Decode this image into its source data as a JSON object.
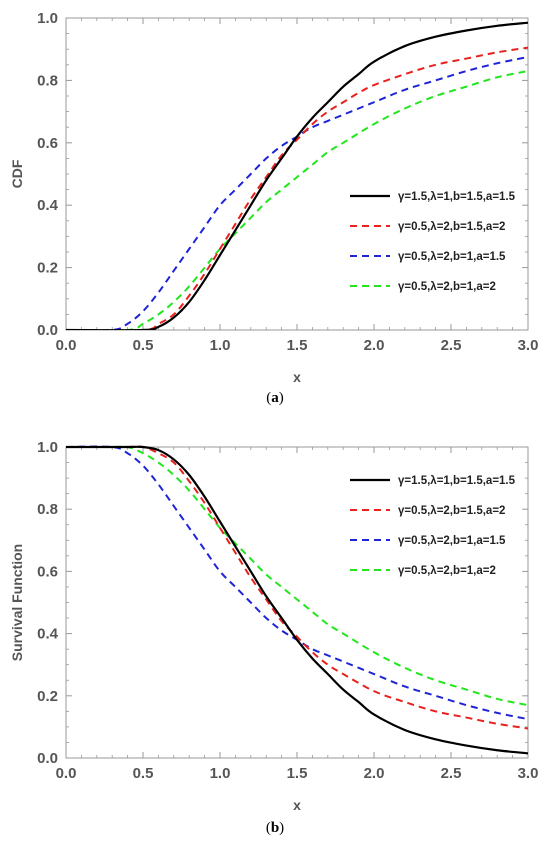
{
  "colors": {
    "series1": "#000000",
    "series2": "#e8211d",
    "series3": "#1f24d6",
    "series4": "#22e61d",
    "axis": "#999999",
    "tick_text": "#555555"
  },
  "chart_data": [
    {
      "type": "line",
      "panel_label": "a",
      "xlabel": "x",
      "ylabel": "CDF",
      "xlim": [
        0.0,
        3.0
      ],
      "ylim": [
        0.0,
        1.0
      ],
      "xticks": [
        "0.0",
        "0.5",
        "1.0",
        "1.5",
        "2.0",
        "2.5",
        "3.0"
      ],
      "yticks": [
        "0.0",
        "0.2",
        "0.4",
        "0.6",
        "0.8",
        "1.0"
      ],
      "grid": false,
      "legend_position": "center-right",
      "series": [
        {
          "name": "γ=1.5,λ=1,b=1.5,a=1.5",
          "style": "solid",
          "x": [
            0.5,
            0.6,
            0.7,
            0.8,
            0.9,
            1.0,
            1.1,
            1.2,
            1.3,
            1.4,
            1.5,
            1.6,
            1.7,
            1.8,
            1.9,
            2.0,
            2.2,
            2.4,
            2.6,
            2.8,
            3.0
          ],
          "y": [
            0.0,
            0.01,
            0.04,
            0.09,
            0.16,
            0.24,
            0.32,
            0.4,
            0.48,
            0.55,
            0.62,
            0.68,
            0.73,
            0.78,
            0.82,
            0.86,
            0.91,
            0.94,
            0.96,
            0.975,
            0.985
          ]
        },
        {
          "name": "γ=0.5,λ=2,b=1.5,a=2",
          "style": "dashed",
          "x": [
            0.5,
            0.6,
            0.7,
            0.8,
            0.9,
            1.0,
            1.1,
            1.2,
            1.3,
            1.4,
            1.5,
            1.6,
            1.7,
            1.8,
            1.9,
            2.0,
            2.2,
            2.4,
            2.6,
            2.8,
            3.0
          ],
          "y": [
            0.0,
            0.02,
            0.05,
            0.11,
            0.18,
            0.26,
            0.34,
            0.42,
            0.49,
            0.56,
            0.61,
            0.66,
            0.7,
            0.73,
            0.76,
            0.785,
            0.82,
            0.85,
            0.87,
            0.89,
            0.905
          ]
        },
        {
          "name": "γ=0.5,λ=2,b=1,a=1.5",
          "style": "dashed",
          "x": [
            0.3,
            0.4,
            0.5,
            0.6,
            0.7,
            0.8,
            0.9,
            1.0,
            1.1,
            1.2,
            1.3,
            1.4,
            1.5,
            1.6,
            1.7,
            1.8,
            2.0,
            2.2,
            2.4,
            2.6,
            2.8,
            3.0
          ],
          "y": [
            0.0,
            0.02,
            0.06,
            0.12,
            0.19,
            0.26,
            0.33,
            0.4,
            0.45,
            0.5,
            0.55,
            0.59,
            0.62,
            0.65,
            0.67,
            0.69,
            0.73,
            0.77,
            0.8,
            0.83,
            0.855,
            0.875
          ]
        },
        {
          "name": "γ=0.5,λ=2,b=1,a=2",
          "style": "dashed",
          "x": [
            0.4,
            0.5,
            0.6,
            0.7,
            0.8,
            0.9,
            1.0,
            1.1,
            1.2,
            1.3,
            1.4,
            1.5,
            1.6,
            1.7,
            1.8,
            2.0,
            2.2,
            2.4,
            2.6,
            2.8,
            3.0
          ],
          "y": [
            0.0,
            0.02,
            0.05,
            0.09,
            0.14,
            0.2,
            0.26,
            0.31,
            0.36,
            0.41,
            0.45,
            0.49,
            0.53,
            0.57,
            0.6,
            0.66,
            0.71,
            0.75,
            0.78,
            0.81,
            0.83
          ]
        }
      ]
    },
    {
      "type": "line",
      "panel_label": "b",
      "xlabel": "x",
      "ylabel": "Survival Function",
      "xlim": [
        0.0,
        3.0
      ],
      "ylim": [
        0.0,
        1.0
      ],
      "xticks": [
        "0.0",
        "0.5",
        "1.0",
        "1.5",
        "2.0",
        "2.5",
        "3.0"
      ],
      "yticks": [
        "0.0",
        "0.2",
        "0.4",
        "0.6",
        "0.8",
        "1.0"
      ],
      "grid": false,
      "legend_position": "top-right",
      "series": [
        {
          "name": "γ=1.5,λ=1,b=1.5,a=1.5",
          "style": "solid",
          "x": [
            0.3,
            0.4,
            0.5,
            0.6,
            0.7,
            0.8,
            0.9,
            1.0,
            1.1,
            1.2,
            1.3,
            1.4,
            1.5,
            1.6,
            1.7,
            1.8,
            1.9,
            2.0,
            2.2,
            2.4,
            2.6,
            2.8,
            3.0
          ],
          "y": [
            1.0,
            1.0,
            1.0,
            0.99,
            0.96,
            0.91,
            0.84,
            0.76,
            0.68,
            0.6,
            0.52,
            0.45,
            0.38,
            0.32,
            0.27,
            0.22,
            0.18,
            0.14,
            0.09,
            0.06,
            0.04,
            0.025,
            0.015
          ]
        },
        {
          "name": "γ=0.5,λ=2,b=1.5,a=2",
          "style": "dashed",
          "x": [
            0.3,
            0.4,
            0.5,
            0.6,
            0.7,
            0.8,
            0.9,
            1.0,
            1.1,
            1.2,
            1.3,
            1.4,
            1.5,
            1.6,
            1.7,
            1.8,
            2.0,
            2.2,
            2.4,
            2.6,
            2.8,
            3.0
          ],
          "y": [
            1.0,
            1.0,
            1.0,
            0.98,
            0.95,
            0.89,
            0.82,
            0.74,
            0.66,
            0.58,
            0.51,
            0.44,
            0.39,
            0.34,
            0.3,
            0.27,
            0.215,
            0.18,
            0.15,
            0.13,
            0.11,
            0.095
          ]
        },
        {
          "name": "γ=0.5,λ=2,b=1,a=1.5",
          "style": "dashed",
          "x": [
            0.3,
            0.4,
            0.5,
            0.6,
            0.7,
            0.8,
            0.9,
            1.0,
            1.1,
            1.2,
            1.3,
            1.4,
            1.5,
            1.6,
            1.7,
            1.8,
            2.0,
            2.2,
            2.4,
            2.6,
            2.8,
            3.0
          ],
          "y": [
            1.0,
            0.98,
            0.94,
            0.88,
            0.81,
            0.74,
            0.67,
            0.6,
            0.55,
            0.5,
            0.45,
            0.41,
            0.38,
            0.35,
            0.33,
            0.31,
            0.27,
            0.23,
            0.2,
            0.17,
            0.145,
            0.125
          ]
        },
        {
          "name": "γ=0.5,λ=2,b=1,a=2",
          "style": "dashed",
          "x": [
            0.3,
            0.4,
            0.5,
            0.6,
            0.7,
            0.8,
            0.9,
            1.0,
            1.1,
            1.2,
            1.3,
            1.4,
            1.5,
            1.6,
            1.7,
            1.8,
            2.0,
            2.2,
            2.4,
            2.6,
            2.8,
            3.0
          ],
          "y": [
            1.0,
            1.0,
            0.98,
            0.95,
            0.91,
            0.86,
            0.8,
            0.74,
            0.69,
            0.64,
            0.59,
            0.55,
            0.51,
            0.47,
            0.43,
            0.4,
            0.34,
            0.29,
            0.25,
            0.22,
            0.19,
            0.17
          ]
        }
      ]
    }
  ]
}
